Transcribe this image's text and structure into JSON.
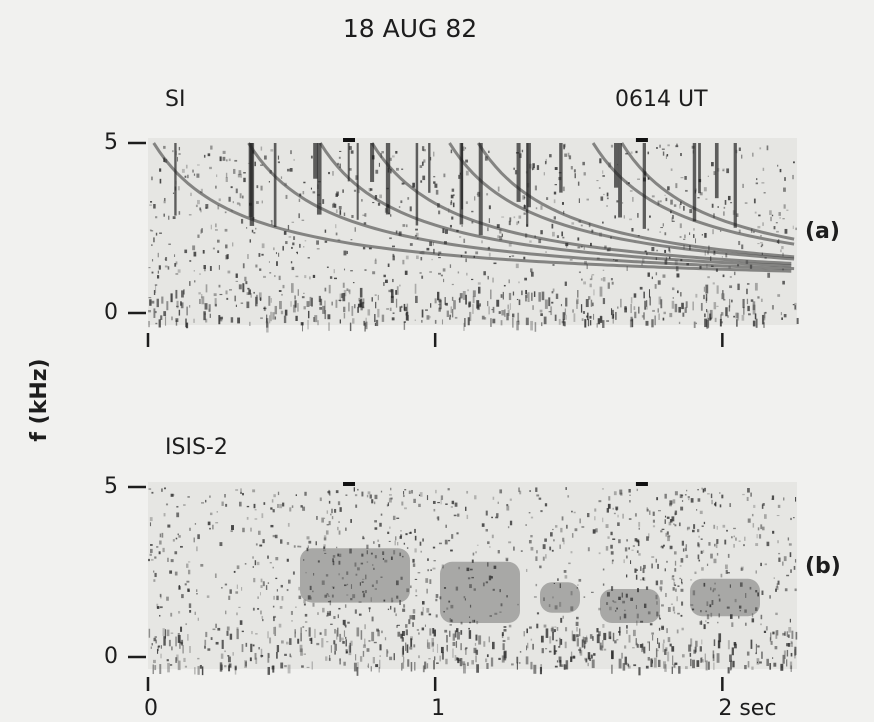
{
  "chart_data": [
    {
      "type": "spectrogram",
      "title": "18 AUG 82",
      "station": "SI",
      "time": "0614 UT",
      "panel": "(a)",
      "ylabel": "f (kHz)",
      "xlim": [
        0,
        2.26
      ],
      "xticks": [
        0,
        1,
        2
      ],
      "ylim": [
        0,
        5
      ],
      "yticks": [
        0,
        5
      ]
    },
    {
      "type": "spectrogram",
      "station": "ISIS-2",
      "panel": "(b)",
      "xlim": [
        0,
        2.26
      ],
      "xticks": [
        0,
        1,
        {
          "value": 2,
          "label": "2 sec"
        }
      ],
      "ylim": [
        0,
        5
      ],
      "yticks": [
        0,
        5
      ]
    }
  ]
}
